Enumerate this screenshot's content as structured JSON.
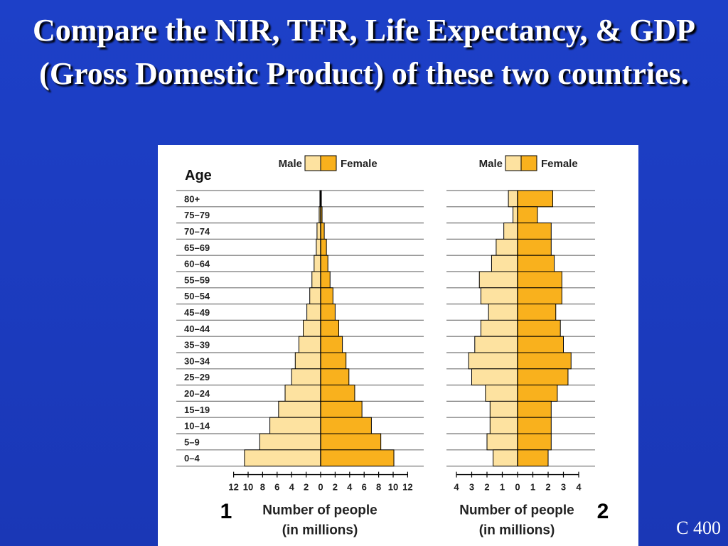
{
  "slide": {
    "title": "Compare the NIR, TFR, Life Expectancy, & GDP (Gross Domestic Product) of these two countries.",
    "code": "C 400"
  },
  "colors": {
    "background": "#1b3bbf",
    "male": "#fde2a0",
    "female": "#f9b11d",
    "gridline": "#777777"
  },
  "chart_data": [
    {
      "type": "bar",
      "orientation": "horizontal-population-pyramid",
      "panel_label": "1",
      "age_label": "Age",
      "categories": [
        "80+",
        "75–79",
        "70–74",
        "65–69",
        "60–64",
        "55–59",
        "50–54",
        "45–49",
        "40–44",
        "35–39",
        "30–34",
        "25–29",
        "20–24",
        "15–19",
        "10–14",
        "5–9",
        "0–4"
      ],
      "series": [
        {
          "name": "Male",
          "values": [
            0.1,
            0.2,
            0.5,
            0.6,
            0.9,
            1.2,
            1.5,
            1.9,
            2.4,
            3.0,
            3.5,
            4.0,
            4.9,
            5.8,
            7.0,
            8.4,
            10.5
          ]
        },
        {
          "name": "Female",
          "values": [
            0.1,
            0.2,
            0.5,
            0.8,
            1.0,
            1.3,
            1.7,
            2.0,
            2.5,
            3.0,
            3.5,
            3.9,
            4.7,
            5.7,
            7.0,
            8.3,
            10.1
          ]
        }
      ],
      "x_ticks": [
        "12",
        "10",
        "8",
        "6",
        "4",
        "2",
        "0",
        "2",
        "4",
        "6",
        "8",
        "10",
        "12"
      ],
      "xlim": [
        -12,
        12
      ],
      "xlabel_line1": "Number of people",
      "xlabel_line2": "(in millions)",
      "legend": "top-center",
      "grid": true
    },
    {
      "type": "bar",
      "orientation": "horizontal-population-pyramid",
      "panel_label": "2",
      "categories": [
        "80+",
        "75–79",
        "70–74",
        "65–69",
        "60–64",
        "55–59",
        "50–54",
        "45–49",
        "40–44",
        "35–39",
        "30–34",
        "25–29",
        "20–24",
        "15–19",
        "10–14",
        "5–9",
        "0–4"
      ],
      "series": [
        {
          "name": "Male",
          "values": [
            0.6,
            0.3,
            0.9,
            1.4,
            1.7,
            2.5,
            2.4,
            1.9,
            2.4,
            2.8,
            3.2,
            3.0,
            2.1,
            1.8,
            1.8,
            2.0,
            1.6
          ]
        },
        {
          "name": "Female",
          "values": [
            2.3,
            1.3,
            2.2,
            2.2,
            2.4,
            2.9,
            2.9,
            2.5,
            2.8,
            3.0,
            3.5,
            3.3,
            2.6,
            2.2,
            2.2,
            2.2,
            2.0
          ]
        }
      ],
      "x_ticks": [
        "4",
        "3",
        "2",
        "1",
        "0",
        "1",
        "2",
        "3",
        "4"
      ],
      "xlim": [
        -4,
        4
      ],
      "xlabel_line1": "Number of people",
      "xlabel_line2": "(in millions)",
      "legend": "top-center",
      "grid": true
    }
  ]
}
